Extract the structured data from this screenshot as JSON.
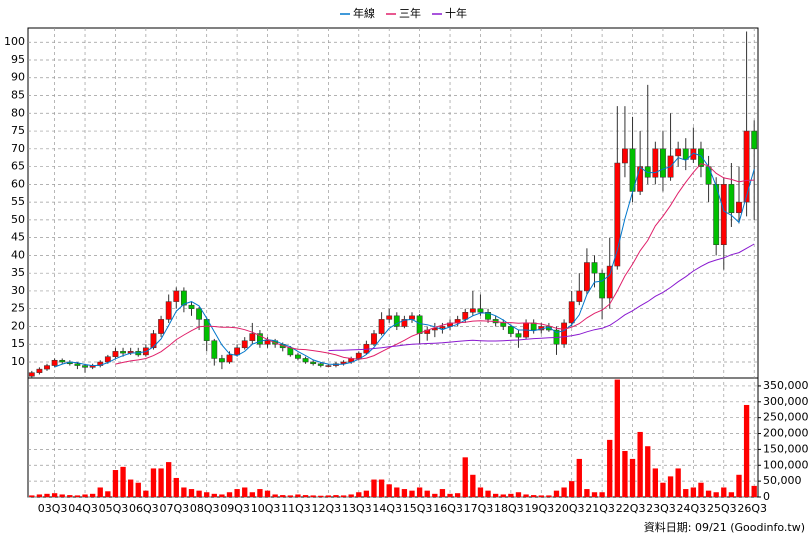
{
  "chart_data": {
    "type": "candlestick",
    "categories": [
      null,
      null,
      null,
      "03Q3",
      null,
      null,
      null,
      "04Q3",
      null,
      null,
      null,
      "05Q3",
      null,
      null,
      null,
      "06Q3",
      null,
      null,
      null,
      "07Q3",
      null,
      null,
      null,
      "08Q3",
      null,
      null,
      null,
      "09Q3",
      null,
      null,
      null,
      "10Q3",
      null,
      null,
      null,
      "11Q3",
      null,
      null,
      null,
      "12Q3",
      null,
      null,
      null,
      "13Q3",
      null,
      null,
      null,
      "14Q3",
      null,
      null,
      null,
      "15Q3",
      null,
      null,
      null,
      "16Q3",
      null,
      null,
      null,
      "17Q3",
      null,
      null,
      null,
      "18Q3",
      null,
      null,
      null,
      "19Q3",
      null,
      null,
      null,
      "20Q3",
      null,
      null,
      null,
      "21Q3",
      null,
      null,
      null,
      "22Q3",
      null,
      null,
      null,
      "23Q3",
      null,
      null,
      null,
      "24Q3",
      null,
      null,
      null,
      "25Q3",
      null,
      null,
      null,
      "26Q3"
    ],
    "ohlc": [
      [
        6,
        7.5,
        5.5,
        7
      ],
      [
        7,
        8.5,
        6.5,
        8
      ],
      [
        8,
        9.5,
        7.5,
        9
      ],
      [
        9,
        11,
        8.5,
        10.5
      ],
      [
        10.5,
        11,
        9.5,
        10
      ],
      [
        10,
        10.5,
        9,
        9.5
      ],
      [
        9.5,
        10,
        8,
        9
      ],
      [
        9,
        9.5,
        7,
        8.5
      ],
      [
        8.5,
        9.5,
        8,
        9
      ],
      [
        9,
        10.5,
        8.5,
        10
      ],
      [
        10,
        12,
        9.5,
        11.5
      ],
      [
        11.5,
        14,
        11,
        13
      ],
      [
        13,
        14,
        11.5,
        12.5
      ],
      [
        12.5,
        14,
        12,
        13
      ],
      [
        13,
        14,
        11.5,
        12
      ],
      [
        12,
        15,
        11.5,
        14
      ],
      [
        14,
        19,
        13.5,
        18
      ],
      [
        18,
        23,
        17,
        22
      ],
      [
        22,
        29,
        21,
        27
      ],
      [
        27,
        31,
        25,
        30
      ],
      [
        30,
        31,
        24,
        26
      ],
      [
        26,
        27,
        23,
        25
      ],
      [
        25,
        25.5,
        19,
        22
      ],
      [
        22,
        22.5,
        13,
        16
      ],
      [
        16,
        16.5,
        9,
        11
      ],
      [
        11,
        12,
        8,
        10
      ],
      [
        10,
        13,
        9.5,
        12
      ],
      [
        12,
        15,
        11.5,
        14
      ],
      [
        14,
        17,
        13.5,
        16
      ],
      [
        16,
        21,
        15,
        18
      ],
      [
        18,
        19,
        14,
        15
      ],
      [
        15,
        17,
        14,
        16
      ],
      [
        16,
        16.5,
        14,
        15
      ],
      [
        15,
        15.5,
        13,
        14
      ],
      [
        14,
        14.5,
        11.5,
        12
      ],
      [
        12,
        12.5,
        10.5,
        11
      ],
      [
        11,
        11.5,
        9.5,
        10
      ],
      [
        10,
        10.5,
        9,
        9.5
      ],
      [
        9.5,
        10,
        8.5,
        9
      ],
      [
        9,
        9.5,
        8.5,
        9
      ],
      [
        9,
        10,
        8.5,
        9.5
      ],
      [
        9.5,
        10.5,
        9,
        10
      ],
      [
        10,
        11.5,
        9.5,
        11
      ],
      [
        11,
        13,
        10.5,
        12.5
      ],
      [
        12.5,
        16,
        12,
        15
      ],
      [
        15,
        19,
        14.5,
        18
      ],
      [
        18,
        24,
        17.5,
        22
      ],
      [
        22,
        25,
        21,
        23
      ],
      [
        23,
        24,
        19,
        20
      ],
      [
        20,
        23,
        19.5,
        22
      ],
      [
        22,
        24,
        21,
        23
      ],
      [
        23,
        23.5,
        15,
        18
      ],
      [
        18,
        20,
        16,
        19
      ],
      [
        19,
        21,
        17,
        19.5
      ],
      [
        19.5,
        21,
        18,
        20
      ],
      [
        20,
        22,
        19,
        21
      ],
      [
        21,
        23,
        20,
        22
      ],
      [
        22,
        25,
        21,
        24
      ],
      [
        24,
        30,
        23,
        25
      ],
      [
        25,
        29,
        23,
        24
      ],
      [
        24,
        25,
        21,
        22
      ],
      [
        22,
        23,
        20,
        21
      ],
      [
        21,
        22,
        19,
        20
      ],
      [
        20,
        20.5,
        17,
        18
      ],
      [
        18,
        19,
        14,
        17
      ],
      [
        17,
        22,
        16.5,
        21
      ],
      [
        21,
        22,
        18,
        19
      ],
      [
        19,
        21,
        18,
        20
      ],
      [
        20,
        21,
        18.5,
        19
      ],
      [
        19,
        20,
        12,
        15
      ],
      [
        15,
        22,
        14,
        21
      ],
      [
        21,
        30,
        20,
        27
      ],
      [
        27,
        35,
        26,
        30
      ],
      [
        30,
        42,
        29,
        38
      ],
      [
        38,
        40,
        31,
        35
      ],
      [
        35,
        36,
        22,
        28
      ],
      [
        28,
        45,
        25,
        37
      ],
      [
        37,
        82,
        36,
        66
      ],
      [
        66,
        82,
        62,
        70
      ],
      [
        70,
        79,
        55,
        58
      ],
      [
        58,
        75,
        57,
        65
      ],
      [
        65,
        88,
        60,
        62
      ],
      [
        62,
        72,
        60,
        70
      ],
      [
        70,
        75,
        58,
        62
      ],
      [
        62,
        80,
        61,
        68
      ],
      [
        68,
        72,
        65,
        70
      ],
      [
        70,
        73,
        64,
        67
      ],
      [
        67,
        76,
        66,
        70
      ],
      [
        70,
        72,
        62,
        65
      ],
      [
        65,
        68,
        55,
        60
      ],
      [
        60,
        62,
        40,
        43
      ],
      [
        43,
        62,
        36,
        60
      ],
      [
        60,
        66,
        48,
        52
      ],
      [
        52,
        65,
        49,
        55
      ],
      [
        55,
        103,
        51,
        75
      ],
      [
        75,
        78,
        50,
        70
      ]
    ],
    "up_color": "#ff0000",
    "down_color": "#00c000",
    "series": [
      {
        "name": "年線",
        "color": "#0077cc",
        "values": [
          null,
          null,
          null,
          8.6,
          9.4,
          10,
          9.8,
          9.3,
          9,
          9.1,
          9.8,
          10.9,
          11.8,
          12.5,
          12.6,
          12.9,
          14.3,
          16.5,
          20.3,
          24.3,
          26.3,
          27,
          25.8,
          22.3,
          18.5,
          14.8,
          12.3,
          11.8,
          13,
          15,
          15.8,
          16.3,
          16,
          15,
          14.3,
          13,
          11.8,
          10.6,
          9.9,
          9.4,
          9.3,
          9.4,
          9.9,
          10.8,
          12.1,
          14.1,
          16.9,
          19.5,
          20.8,
          21.8,
          22,
          20.8,
          20.5,
          19.9,
          19.1,
          19.9,
          20.6,
          21.8,
          23,
          23.8,
          23.8,
          23,
          21.8,
          20.3,
          19,
          19,
          18.8,
          19.3,
          19.8,
          18.3,
          18.8,
          20.5,
          23.3,
          29,
          32.5,
          32.8,
          34.5,
          41.5,
          50.3,
          57.8,
          64.8,
          63.3,
          63.3,
          64.3,
          65,
          67.5,
          66.8,
          68.8,
          68,
          65,
          59.5,
          52.5,
          51.3,
          49.3,
          56.8,
          64.3
        ]
      },
      {
        "name": "三年",
        "color": "#e0206a",
        "values": [
          null,
          null,
          null,
          null,
          null,
          null,
          null,
          null,
          null,
          null,
          null,
          9.4,
          9.9,
          10.3,
          10.6,
          11,
          11.8,
          12.9,
          14.5,
          16.3,
          17.6,
          18.8,
          19.9,
          20.1,
          20,
          19.8,
          19.8,
          19.6,
          19.1,
          18.4,
          17.4,
          16.3,
          15.4,
          14.6,
          14,
          13.6,
          13.5,
          13.2,
          12.9,
          12.5,
          12,
          11.3,
          11,
          10.8,
          11.1,
          11.8,
          12.9,
          14,
          15,
          16.1,
          17.3,
          18.1,
          18.9,
          19.7,
          20.4,
          20.9,
          21,
          21.2,
          21.5,
          21.6,
          21.5,
          21.4,
          21.1,
          21.1,
          20.9,
          21,
          20.9,
          20.7,
          20.2,
          19.5,
          19.2,
          19.8,
          20.8,
          22.4,
          23.7,
          24.6,
          26.3,
          30,
          34.2,
          37.5,
          41.3,
          44.2,
          48.3,
          51,
          54.1,
          57.6,
          60.6,
          63.4,
          65.8,
          65.2,
          63.1,
          61.8,
          61.4,
          60.7,
          61.1,
          61.2
        ]
      },
      {
        "name": "十年",
        "color": "#8a1ad0",
        "values": [
          null,
          null,
          null,
          null,
          null,
          null,
          null,
          null,
          null,
          null,
          null,
          null,
          null,
          null,
          null,
          null,
          null,
          null,
          null,
          null,
          null,
          null,
          null,
          null,
          null,
          null,
          null,
          null,
          null,
          null,
          null,
          null,
          null,
          null,
          null,
          null,
          null,
          null,
          null,
          13.2,
          13.3,
          13.3,
          13.4,
          13.5,
          13.6,
          13.8,
          14,
          14.3,
          14.5,
          14.8,
          15,
          15.1,
          15.2,
          15.3,
          15.4,
          15.6,
          15.8,
          16,
          16.1,
          16,
          15.9,
          15.9,
          16,
          16.1,
          16.2,
          16.4,
          16.6,
          16.7,
          16.8,
          16.9,
          17.1,
          17.4,
          17.8,
          18.5,
          19.1,
          19.5,
          20.3,
          21.7,
          23.3,
          24.4,
          25.8,
          27,
          28.5,
          29.6,
          31,
          32.6,
          34,
          35.6,
          36.9,
          38,
          38.7,
          39.3,
          40.2,
          40.8,
          42,
          43.2
        ]
      }
    ],
    "ylim": [
      5.5,
      104
    ],
    "yticks": [
      10,
      15,
      20,
      25,
      30,
      35,
      40,
      45,
      50,
      55,
      60,
      65,
      70,
      75,
      80,
      85,
      90,
      95,
      100
    ],
    "volume": {
      "color": "#ff0000",
      "ylim": [
        0,
        375000
      ],
      "yticks": [
        0,
        {
          "value": 50000,
          "label": "50,000"
        },
        {
          "value": 100000,
          "label": "100,000"
        },
        {
          "value": 150000,
          "label": "150,000"
        },
        {
          "value": 200000,
          "label": "200,000"
        },
        {
          "value": 250000,
          "label": "250,000"
        },
        {
          "value": 300000,
          "label": "300,000"
        },
        {
          "value": 350000,
          "label": "350,000"
        }
      ],
      "values": [
        5000,
        8000,
        10000,
        12000,
        8000,
        6000,
        5000,
        8000,
        10000,
        30000,
        18000,
        85000,
        95000,
        55000,
        45000,
        20000,
        90000,
        90000,
        110000,
        60000,
        30000,
        25000,
        20000,
        15000,
        10000,
        8000,
        15000,
        25000,
        30000,
        15000,
        25000,
        20000,
        8000,
        6000,
        5000,
        8000,
        6000,
        5000,
        4000,
        5000,
        6000,
        5000,
        8000,
        15000,
        20000,
        55000,
        55000,
        40000,
        30000,
        25000,
        20000,
        30000,
        20000,
        10000,
        25000,
        10000,
        12000,
        125000,
        70000,
        30000,
        20000,
        10000,
        8000,
        10000,
        15000,
        8000,
        6000,
        5000,
        5000,
        20000,
        30000,
        50000,
        120000,
        25000,
        15000,
        15000,
        180000,
        370000,
        145000,
        120000,
        205000,
        160000,
        90000,
        45000,
        65000,
        90000,
        25000,
        30000,
        45000,
        20000,
        15000,
        30000,
        15000,
        70000,
        290000,
        35000
      ]
    },
    "grid": true,
    "legend": "top",
    "footnote": "資料日期: 09/21 (Goodinfo.tw)"
  }
}
